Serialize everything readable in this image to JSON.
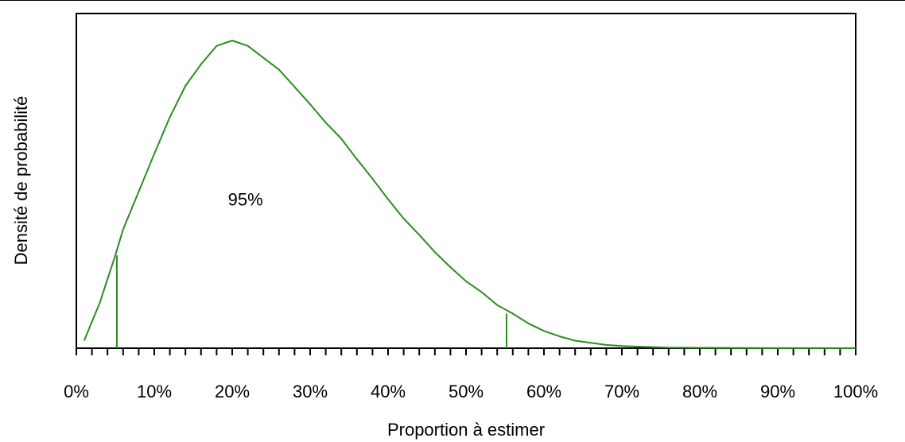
{
  "chart_data": {
    "type": "line",
    "xlabel": "Proportion à estimer",
    "ylabel": "Densité de probabilité",
    "xlim": [
      0,
      1
    ],
    "ylim": [
      0,
      3.1
    ],
    "y_ticks_shown": false,
    "grid": false,
    "x_ticks": [
      0,
      0.1,
      0.2,
      0.3,
      0.4,
      0.5,
      0.6,
      0.7,
      0.8,
      0.9,
      1.0
    ],
    "x_tick_labels": [
      "0%",
      "10%",
      "20%",
      "30%",
      "40%",
      "50%",
      "60%",
      "70%",
      "80%",
      "90%",
      "100%"
    ],
    "x_minor_step": 0.02,
    "series": [
      {
        "color": "#2e8b22",
        "x": [
          0.01,
          0.03,
          0.05,
          0.06,
          0.08,
          0.1,
          0.12,
          0.14,
          0.16,
          0.18,
          0.2,
          0.22,
          0.24,
          0.26,
          0.28,
          0.3,
          0.32,
          0.34,
          0.36,
          0.38,
          0.4,
          0.42,
          0.44,
          0.46,
          0.48,
          0.5,
          0.52,
          0.54,
          0.56,
          0.58,
          0.6,
          0.62,
          0.64,
          0.66,
          0.68,
          0.7,
          0.72,
          0.74,
          0.76,
          0.8,
          0.85,
          0.9,
          0.95,
          1.0
        ],
        "y": [
          0.07,
          0.42,
          0.86,
          1.1,
          1.45,
          1.8,
          2.14,
          2.43,
          2.63,
          2.8,
          2.85,
          2.8,
          2.69,
          2.58,
          2.42,
          2.26,
          2.09,
          1.94,
          1.75,
          1.57,
          1.38,
          1.2,
          1.05,
          0.89,
          0.75,
          0.62,
          0.52,
          0.4,
          0.32,
          0.23,
          0.16,
          0.11,
          0.07,
          0.05,
          0.03,
          0.02,
          0.015,
          0.01,
          0.006,
          0.004,
          0.002,
          0.001,
          0.0005,
          0.0
        ]
      }
    ],
    "markers": [
      {
        "x": 0.052,
        "y": 0.86
      },
      {
        "x": 0.552,
        "y": 0.32
      }
    ],
    "annotations": [
      {
        "text": "95%",
        "x": 0.22,
        "y": 1.38
      }
    ]
  }
}
